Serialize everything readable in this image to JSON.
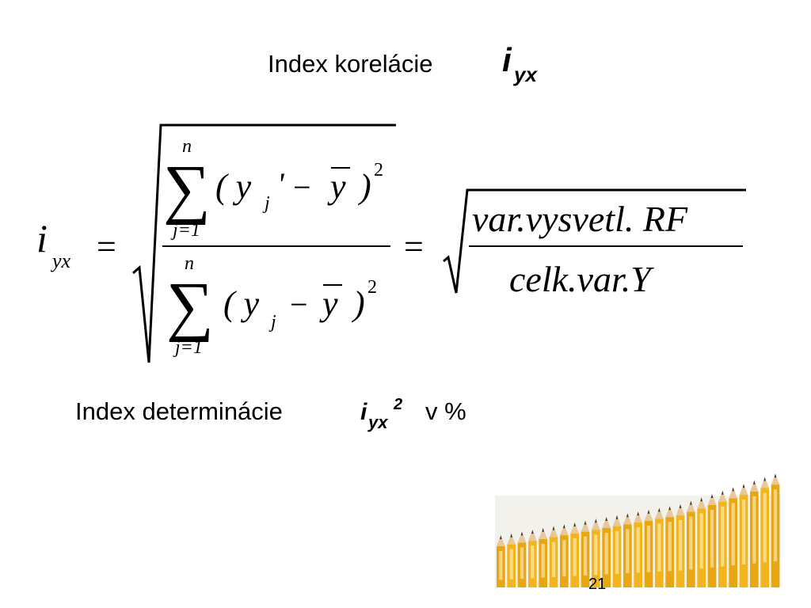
{
  "title": {
    "text": "Index korelácie",
    "symbol": "i",
    "subscript": "yx"
  },
  "formula": {
    "lhs": {
      "symbol": "i",
      "subscript": "yx"
    },
    "equals": "=",
    "numerator": {
      "upper": "n",
      "sigma": "∑",
      "lower": "j=1",
      "open": "( y",
      "index": "j",
      "prime": "'",
      "minus": "−",
      "mean": "y",
      "close": ")",
      "power": "2"
    },
    "denominator": {
      "upper": "n",
      "sigma": "∑",
      "lower": "j=1",
      "open": "( y",
      "index": "j",
      "minus": "−",
      "mean": "y",
      "close": ")",
      "power": "2"
    },
    "equals2": "=",
    "ratio_numerator": "var.vysvetl. RF",
    "ratio_denominator": "celk.var.Y"
  },
  "subtitle": {
    "text": "Index determinácie",
    "symbol": "i",
    "subscript": "yx",
    "superscript": "2",
    "unit": "v %"
  },
  "page_number": "21"
}
